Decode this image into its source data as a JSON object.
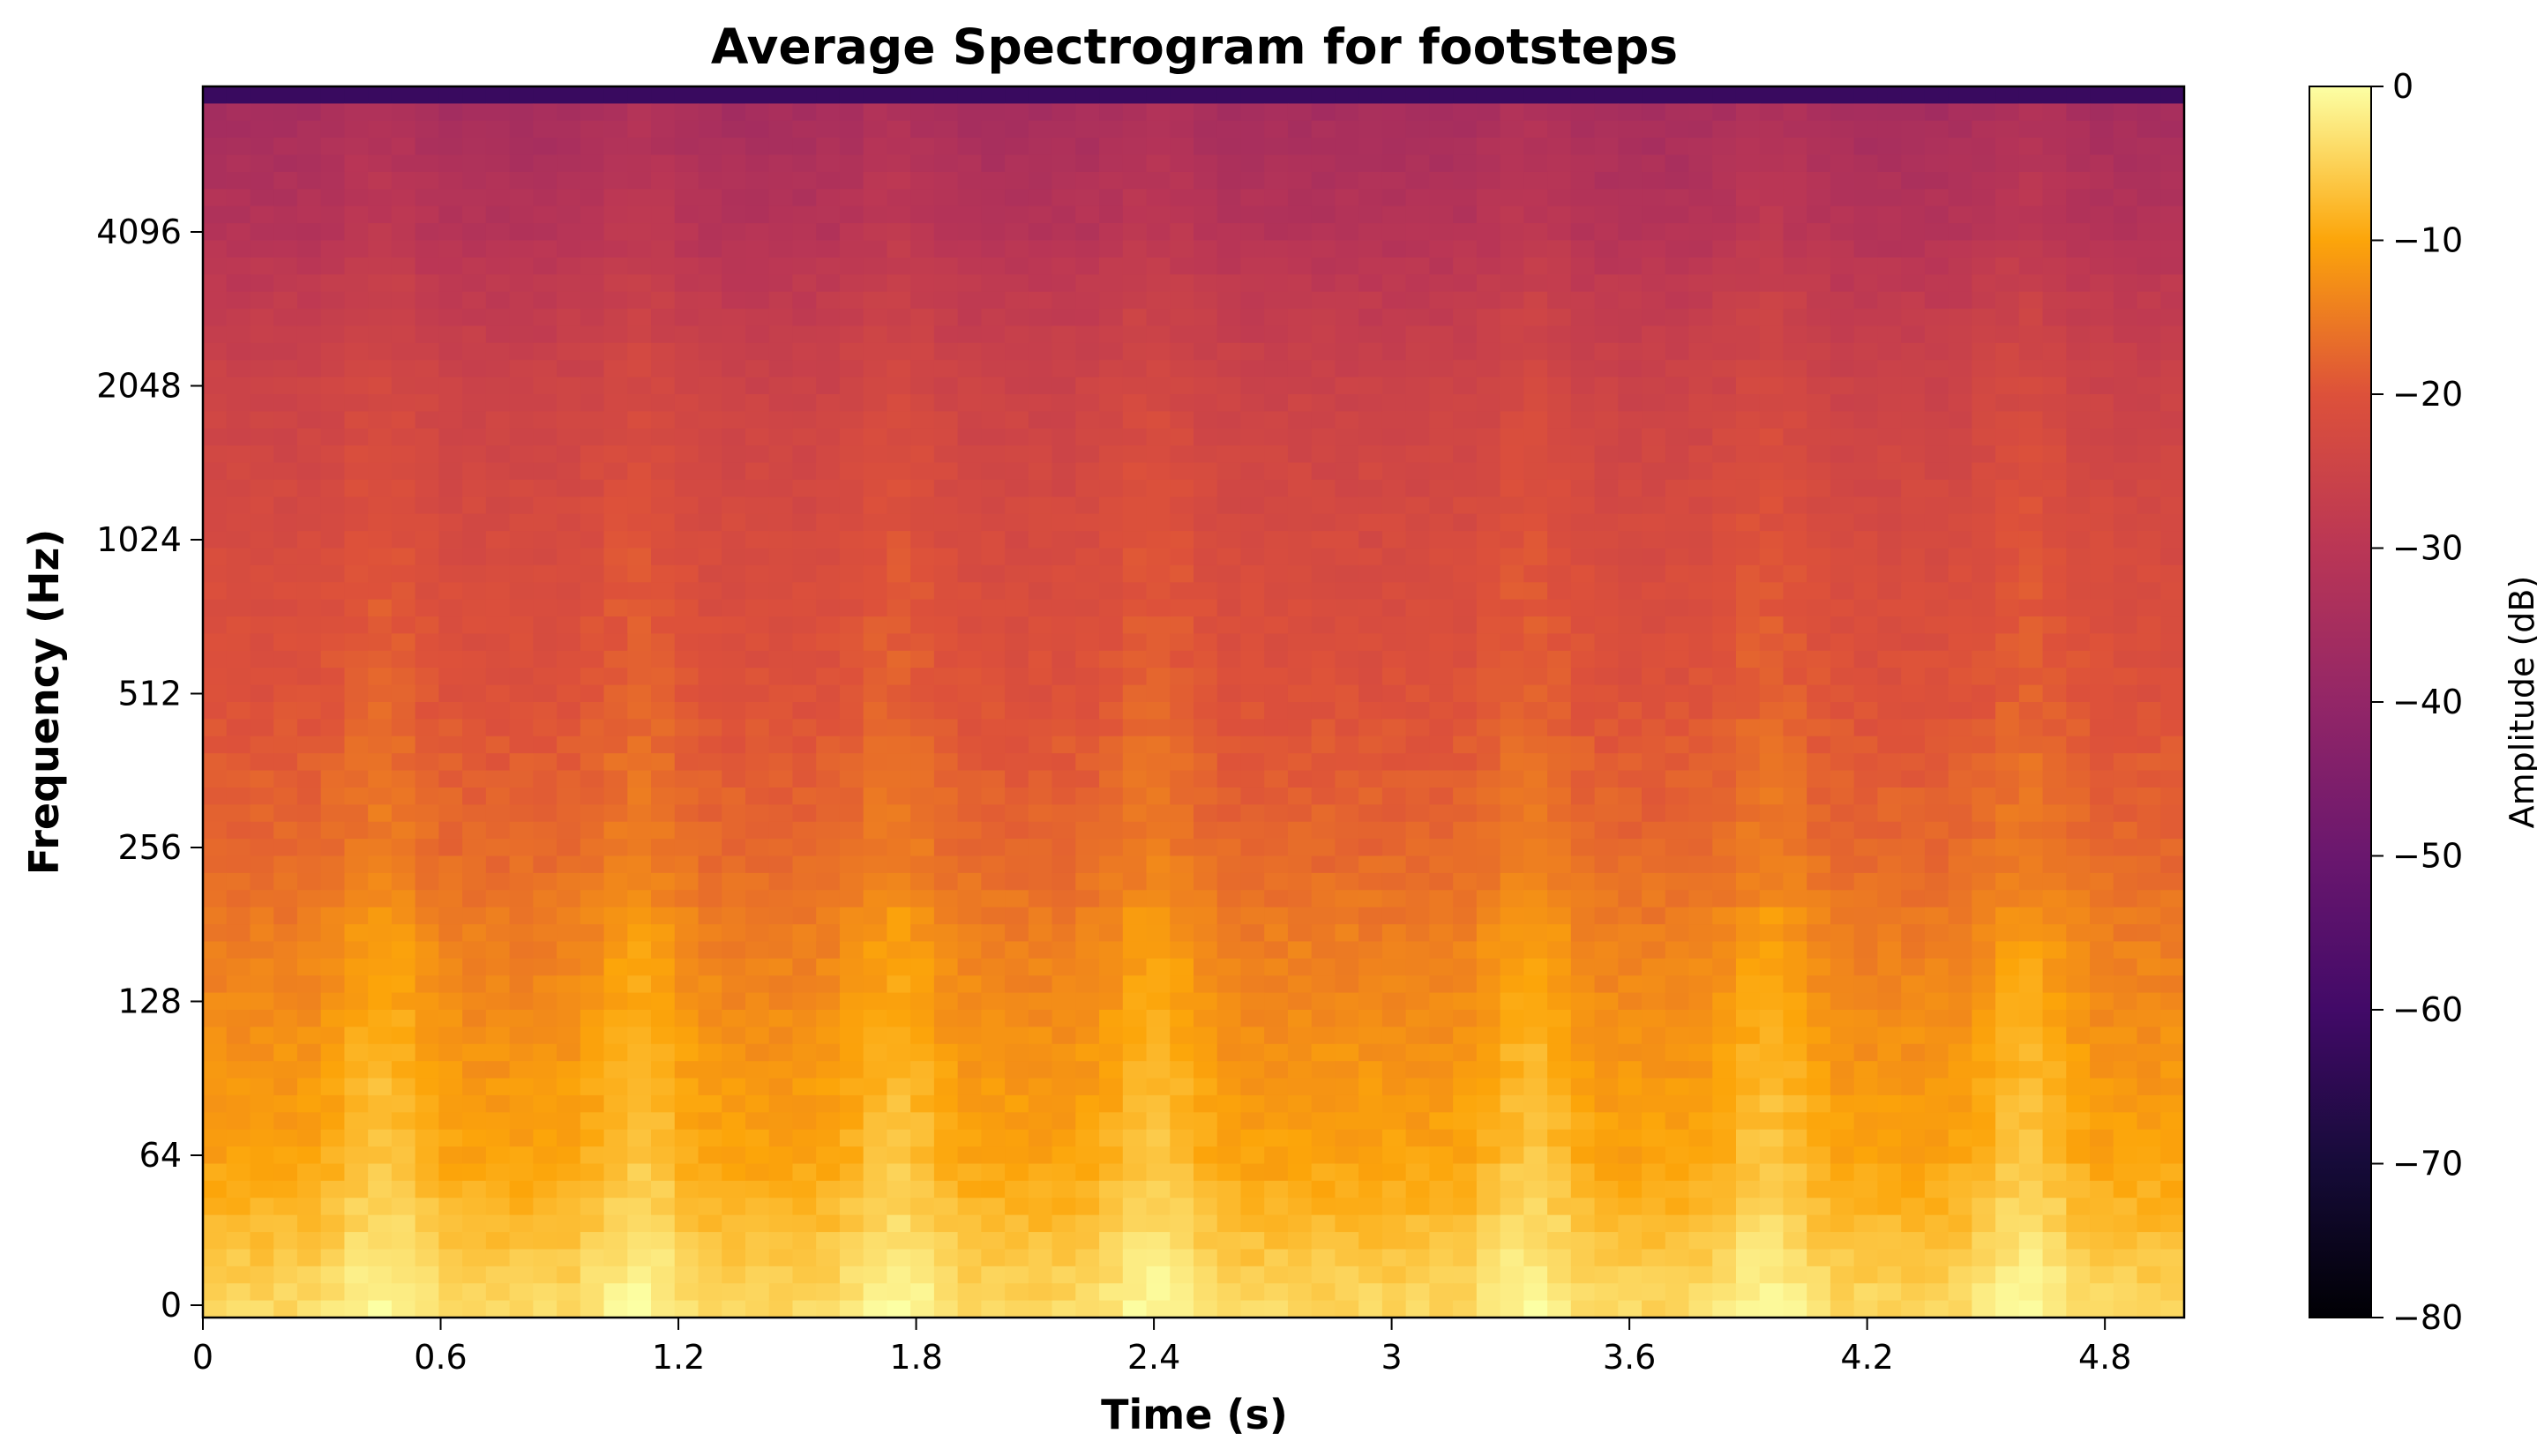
{
  "chart_data": {
    "type": "heatmap",
    "title": "Average Spectrogram for footsteps",
    "xlabel": "Time (s)",
    "ylabel": "Frequency (Hz)",
    "x_ticks": [
      "0",
      "0.6",
      "1.2",
      "1.8",
      "2.4",
      "3",
      "3.6",
      "4.2",
      "4.8"
    ],
    "x_tick_values": [
      0,
      0.6,
      1.2,
      1.8,
      2.4,
      3,
      3.6,
      4.2,
      4.8
    ],
    "xlim": [
      0,
      5.0
    ],
    "y_scale": "symlog (base 2)",
    "y_ticks": [
      "0",
      "64",
      "128",
      "256",
      "512",
      "1024",
      "2048",
      "4096"
    ],
    "y_tick_values": [
      0,
      64,
      128,
      256,
      512,
      1024,
      2048,
      4096
    ],
    "ylim": [
      0,
      11025
    ],
    "colormap": "inferno",
    "colorbar": {
      "label": "Amplitude (dB)",
      "ticks": [
        "0",
        "−10",
        "−20",
        "−30",
        "−40",
        "−50",
        "−60",
        "−70",
        "−80"
      ],
      "tick_values": [
        0,
        -10,
        -20,
        -30,
        -40,
        -50,
        -60,
        -70,
        -80
      ],
      "range": [
        -80,
        0
      ]
    },
    "description_profile": {
      "frequencies_hz": [
        0,
        32,
        64,
        128,
        256,
        512,
        1024,
        2048,
        4096,
        8192,
        11025
      ],
      "mean_amplitude_db": [
        -3,
        -6,
        -9,
        -12,
        -16,
        -19,
        -21,
        -24,
        -30,
        -35,
        -65
      ]
    },
    "time_peaks_s": [
      0.45,
      1.1,
      1.75,
      2.4,
      3.35,
      3.95,
      4.6
    ],
    "grid": false
  }
}
